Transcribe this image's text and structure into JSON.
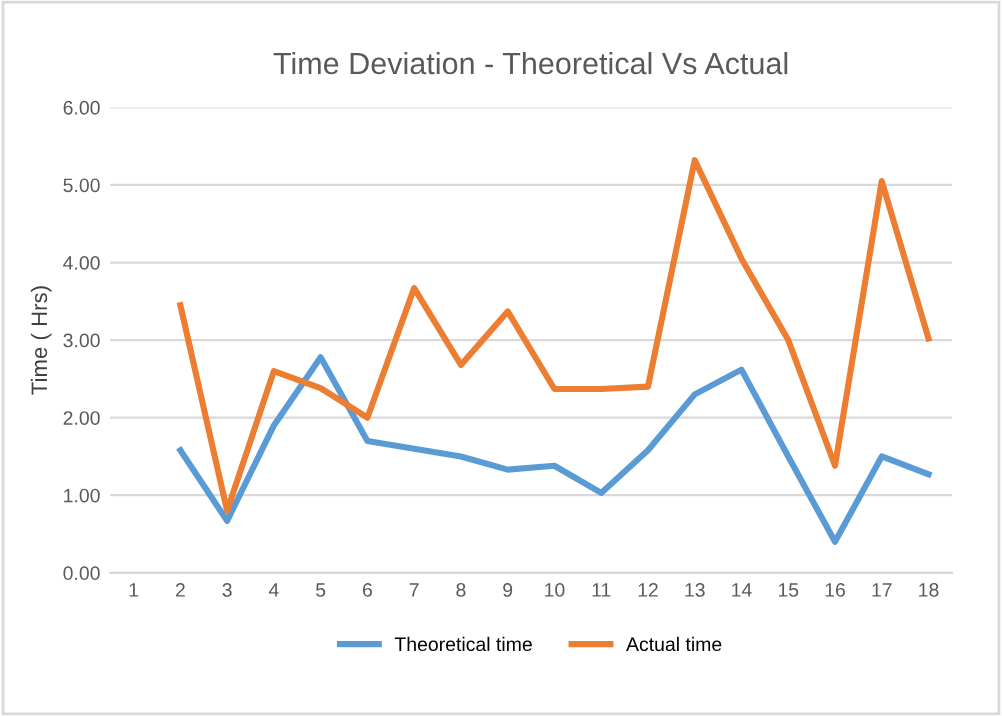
{
  "chart_data": {
    "type": "line",
    "title": "Time Deviation - Theoretical Vs Actual",
    "ylabel": "Time ( Hrs)",
    "categories": [
      "1",
      "2",
      "3",
      "4",
      "5",
      "6",
      "7",
      "8",
      "9",
      "10",
      "11",
      "12",
      "13",
      "14",
      "15",
      "16",
      "17",
      "18"
    ],
    "series": [
      {
        "name": "Theoretical time",
        "color": "#5b9bd5",
        "values": [
          null,
          1.58,
          0.67,
          1.9,
          2.78,
          1.7,
          1.6,
          1.5,
          1.33,
          1.38,
          1.03,
          1.58,
          2.3,
          2.62,
          1.5,
          0.4,
          1.5,
          1.27
        ]
      },
      {
        "name": "Actual time",
        "color": "#ed7d31",
        "values": [
          null,
          3.45,
          0.8,
          2.6,
          2.38,
          2.0,
          3.67,
          2.68,
          3.37,
          2.37,
          2.37,
          2.4,
          5.32,
          4.05,
          3.0,
          1.38,
          5.05,
          3.02
        ]
      }
    ],
    "ylim": [
      0,
      6
    ],
    "yticks": [
      {
        "value": 0,
        "label": "0.00"
      },
      {
        "value": 1,
        "label": "1.00"
      },
      {
        "value": 2,
        "label": "2.00"
      },
      {
        "value": 3,
        "label": "3.00"
      },
      {
        "value": 4,
        "label": "4.00"
      },
      {
        "value": 5,
        "label": "5.00"
      },
      {
        "value": 6,
        "label": "6.00"
      }
    ],
    "grid": "y",
    "legend": "bottom",
    "marker": "none",
    "line_style": "solid"
  }
}
